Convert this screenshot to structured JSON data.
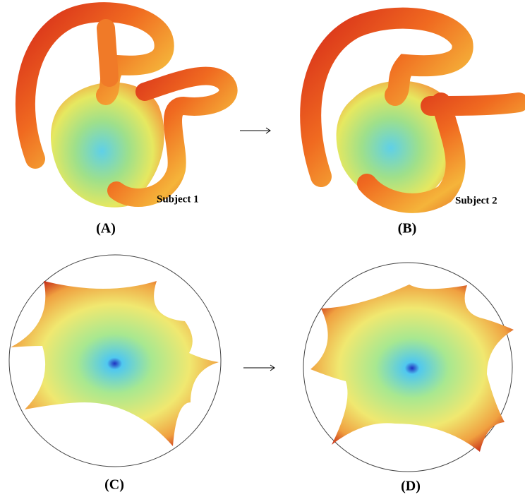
{
  "panels": [
    {
      "label": "(A)",
      "subject": "Subject 1"
    },
    {
      "label": "(B)",
      "subject": "Subject 2"
    },
    {
      "label": "(C)"
    },
    {
      "label": "(D)"
    }
  ]
}
